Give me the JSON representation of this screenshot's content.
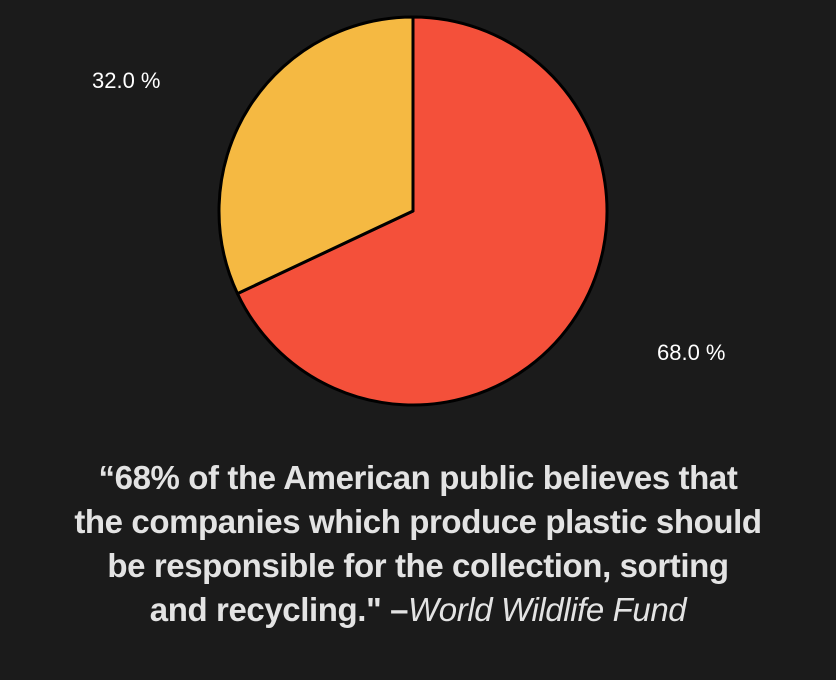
{
  "chart_data": {
    "type": "pie",
    "slices": [
      {
        "label": "68.0 %",
        "value": 68.0,
        "color": "#f4503a"
      },
      {
        "label": "32.0 %",
        "value": 32.0,
        "color": "#f5b942"
      }
    ],
    "start_angle": "12 o'clock, clockwise",
    "legend": "none"
  },
  "quote": {
    "line1": "“68% of the American public believes that",
    "line2": "the companies which produce plastic should",
    "line3": "be responsible for the collection, sorting",
    "line4": "and recycling.\" –",
    "attribution": "World Wildlife Fund"
  },
  "colors": {
    "background": "#1b1b1b",
    "outline": "#000000",
    "label_text": "#ffffff",
    "quote_text": "#e3e3e3"
  }
}
